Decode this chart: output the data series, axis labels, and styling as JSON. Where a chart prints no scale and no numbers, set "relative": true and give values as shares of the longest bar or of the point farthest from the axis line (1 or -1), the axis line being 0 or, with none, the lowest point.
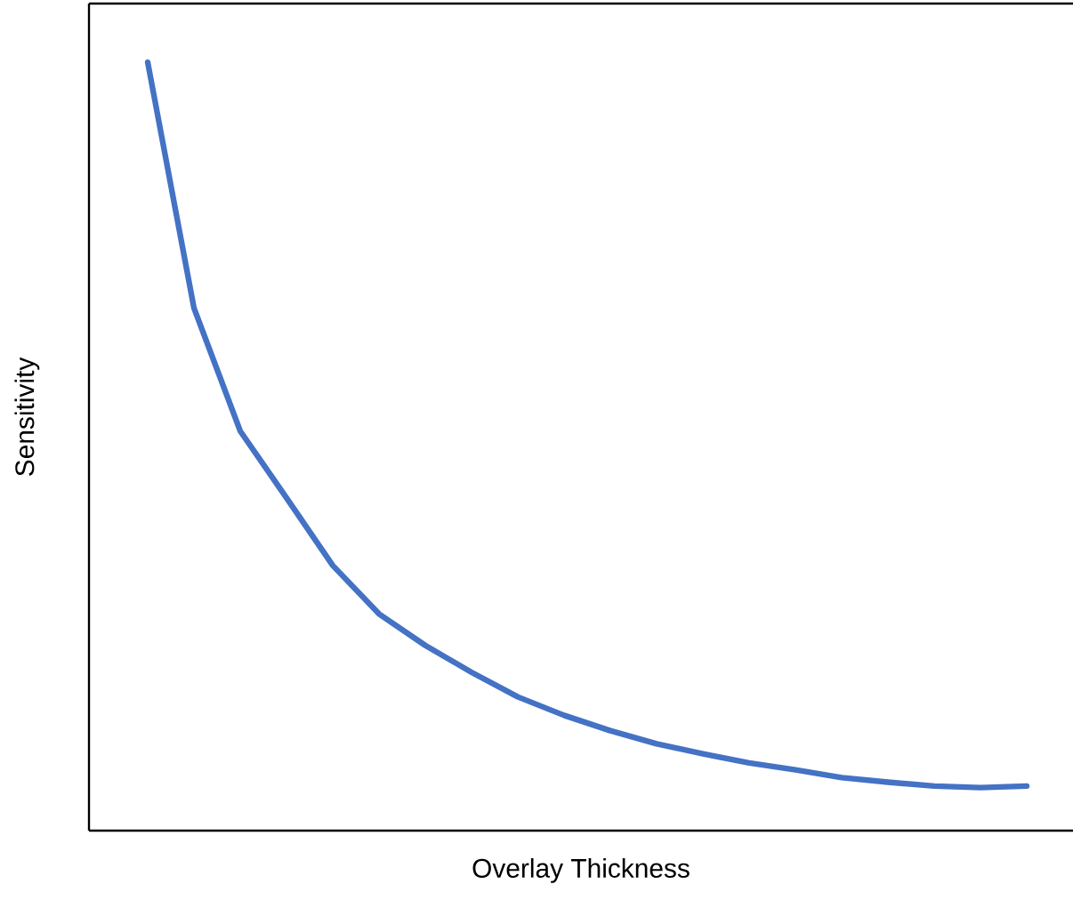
{
  "chart_data": {
    "type": "line",
    "relative": true,
    "xlabel": "Overlay Thickness",
    "ylabel": "Sensitivity",
    "categories": [
      null,
      null,
      null,
      null,
      null,
      null,
      null,
      null,
      null,
      null,
      null,
      null,
      null,
      null,
      null,
      null,
      null,
      null,
      null,
      null
    ],
    "series": [
      {
        "color": "#4472c4",
        "values": [
          1,
          0.68,
          0.52,
          0.433,
          0.345,
          0.282,
          0.241,
          0.206,
          0.174,
          0.15,
          0.13,
          0.113,
          0.1,
          0.088,
          0.079,
          0.069,
          0.063,
          0.058,
          0.056,
          0.058
        ]
      }
    ],
    "marker": "none",
    "line_style": "solid"
  }
}
